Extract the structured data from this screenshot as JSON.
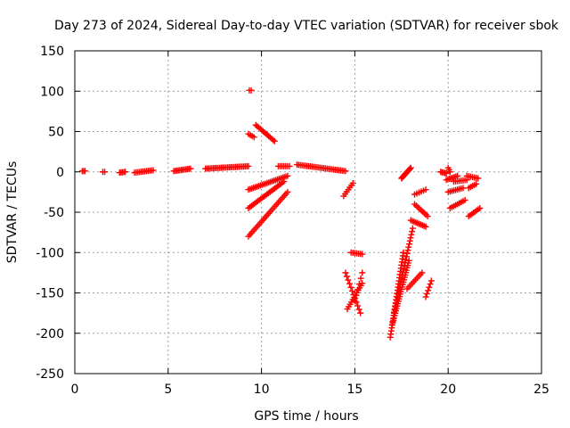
{
  "chart_data": {
    "type": "scatter",
    "title": "Day 273 of 2024, Sidereal Day-to-day VTEC variation (SDTVAR) for receiver sbok",
    "xlabel": "GPS time / hours",
    "ylabel": "SDTVAR / TECUs",
    "xlim": [
      0,
      25
    ],
    "ylim": [
      -250,
      150
    ],
    "xticks": [
      0,
      5,
      10,
      15,
      20,
      25
    ],
    "yticks": [
      -250,
      -200,
      -150,
      -100,
      -50,
      0,
      50,
      100,
      150
    ],
    "grid": true,
    "marker": "+",
    "color": "#ff0000",
    "segments": [
      {
        "from": [
          0.4,
          1
        ],
        "to": [
          0.55,
          1
        ],
        "n": 3
      },
      {
        "from": [
          1.5,
          0
        ],
        "to": [
          1.6,
          0
        ],
        "n": 2
      },
      {
        "from": [
          2.4,
          -1
        ],
        "to": [
          2.7,
          0
        ],
        "n": 5
      },
      {
        "from": [
          3.2,
          -1
        ],
        "to": [
          4.2,
          2
        ],
        "n": 12
      },
      {
        "from": [
          5.3,
          1
        ],
        "to": [
          6.2,
          4
        ],
        "n": 12
      },
      {
        "from": [
          7.0,
          4
        ],
        "to": [
          9.3,
          7
        ],
        "n": 28
      },
      {
        "from": [
          9.35,
          101
        ],
        "to": [
          9.45,
          101
        ],
        "n": 2
      },
      {
        "from": [
          9.3,
          47
        ],
        "to": [
          9.6,
          43
        ],
        "n": 4
      },
      {
        "from": [
          9.7,
          58
        ],
        "to": [
          10.7,
          38
        ],
        "n": 14
      },
      {
        "from": [
          9.3,
          -22
        ],
        "to": [
          11.4,
          -5
        ],
        "n": 24
      },
      {
        "from": [
          9.3,
          -45
        ],
        "to": [
          11.2,
          -12
        ],
        "n": 24
      },
      {
        "from": [
          9.3,
          -80
        ],
        "to": [
          11.4,
          -25
        ],
        "n": 26
      },
      {
        "from": [
          10.9,
          7
        ],
        "to": [
          11.5,
          7
        ],
        "n": 7
      },
      {
        "from": [
          11.9,
          9
        ],
        "to": [
          14.5,
          1
        ],
        "n": 30
      },
      {
        "from": [
          14.4,
          -30
        ],
        "to": [
          14.9,
          -14
        ],
        "n": 7
      },
      {
        "from": [
          14.5,
          -125
        ],
        "to": [
          15.3,
          -175
        ],
        "n": 12
      },
      {
        "from": [
          14.6,
          -170
        ],
        "to": [
          15.4,
          -138
        ],
        "n": 12
      },
      {
        "from": [
          14.8,
          -100
        ],
        "to": [
          15.4,
          -102
        ],
        "n": 7
      },
      {
        "from": [
          15.0,
          -160
        ],
        "to": [
          15.4,
          -125
        ],
        "n": 6
      },
      {
        "from": [
          16.9,
          -205
        ],
        "to": [
          17.6,
          -100
        ],
        "n": 28
      },
      {
        "from": [
          17.0,
          -190
        ],
        "to": [
          17.9,
          -110
        ],
        "n": 28
      },
      {
        "from": [
          17.1,
          -175
        ],
        "to": [
          18.1,
          -70
        ],
        "n": 28
      },
      {
        "from": [
          17.5,
          -8
        ],
        "to": [
          18.0,
          5
        ],
        "n": 14
      },
      {
        "from": [
          17.8,
          -145
        ],
        "to": [
          18.6,
          -125
        ],
        "n": 10
      },
      {
        "from": [
          18.0,
          -60
        ],
        "to": [
          18.8,
          -68
        ],
        "n": 10
      },
      {
        "from": [
          18.2,
          -40
        ],
        "to": [
          18.9,
          -55
        ],
        "n": 9
      },
      {
        "from": [
          18.2,
          -28
        ],
        "to": [
          18.8,
          -22
        ],
        "n": 6
      },
      {
        "from": [
          18.8,
          -155
        ],
        "to": [
          19.1,
          -135
        ],
        "n": 6
      },
      {
        "from": [
          19.6,
          0
        ],
        "to": [
          19.9,
          -2
        ],
        "n": 5
      },
      {
        "from": [
          20.0,
          5
        ],
        "to": [
          20.1,
          0
        ],
        "n": 3
      },
      {
        "from": [
          19.9,
          -10
        ],
        "to": [
          20.5,
          -5
        ],
        "n": 8
      },
      {
        "from": [
          20.0,
          -25
        ],
        "to": [
          20.8,
          -20
        ],
        "n": 9
      },
      {
        "from": [
          20.1,
          -45
        ],
        "to": [
          20.9,
          -35
        ],
        "n": 9
      },
      {
        "from": [
          20.3,
          -12
        ],
        "to": [
          21.0,
          -10
        ],
        "n": 8
      },
      {
        "from": [
          21.0,
          -5
        ],
        "to": [
          21.6,
          -8
        ],
        "n": 7
      },
      {
        "from": [
          21.1,
          -20
        ],
        "to": [
          21.5,
          -15
        ],
        "n": 5
      },
      {
        "from": [
          21.1,
          -55
        ],
        "to": [
          21.7,
          -45
        ],
        "n": 8
      }
    ]
  }
}
